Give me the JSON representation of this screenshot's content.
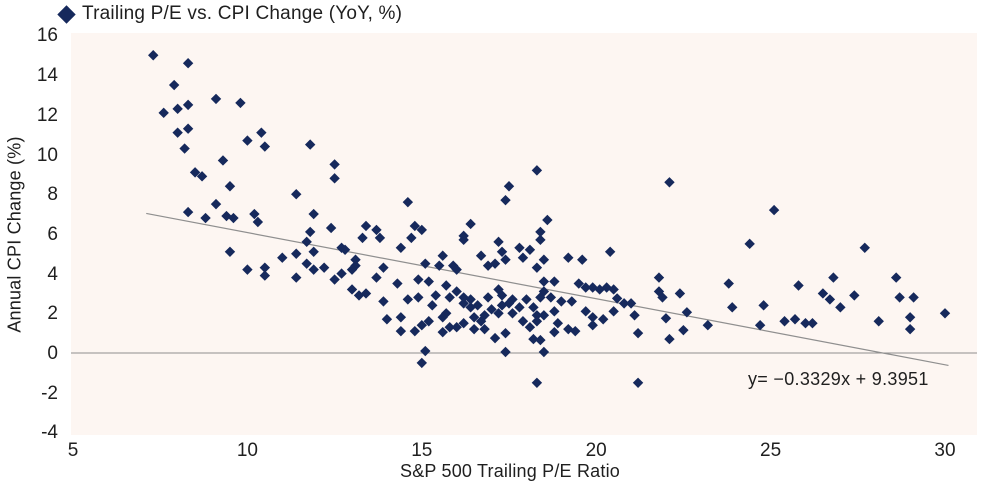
{
  "legend": {
    "label": "Trailing P/E vs. CPI Change (YoY, %)"
  },
  "colors": {
    "marker": "#16295c",
    "plot_bg": "#fdf6f2",
    "line_gray": "#8f8f8f",
    "text": "#1f1f1f"
  },
  "chart_data": {
    "type": "scatter",
    "title": "Trailing P/E vs. CPI Change (YoY, %)",
    "xlabel": "S&P 500 Trailing P/E Ratio",
    "ylabel": "Annual CPI Change (%)",
    "xlim": [
      5,
      30
    ],
    "ylim": [
      -4,
      16
    ],
    "x_ticks": [
      5,
      10,
      15,
      20,
      25,
      30
    ],
    "y_ticks": [
      16,
      14,
      12,
      10,
      8,
      6,
      4,
      2,
      0,
      -2,
      -4
    ],
    "grid": false,
    "legend_position": "top-left",
    "zero_line": true,
    "trendline": {
      "label": "y= −0.3329x + 9.3951",
      "slope": -0.3329,
      "intercept": 9.3951,
      "x_range": [
        7.1,
        30.1
      ]
    },
    "points": [
      [
        7.3,
        15.0
      ],
      [
        8.3,
        14.6
      ],
      [
        7.9,
        13.5
      ],
      [
        9.1,
        12.8
      ],
      [
        9.8,
        12.6
      ],
      [
        8.3,
        12.5
      ],
      [
        8.0,
        12.3
      ],
      [
        7.6,
        12.1
      ],
      [
        8.3,
        11.3
      ],
      [
        8.0,
        11.1
      ],
      [
        10.4,
        11.1
      ],
      [
        11.8,
        10.5
      ],
      [
        10.0,
        10.7
      ],
      [
        10.5,
        10.4
      ],
      [
        8.2,
        10.3
      ],
      [
        9.3,
        9.7
      ],
      [
        12.5,
        9.5
      ],
      [
        18.3,
        9.2
      ],
      [
        8.5,
        9.1
      ],
      [
        8.7,
        8.9
      ],
      [
        12.5,
        8.8
      ],
      [
        22.1,
        8.6
      ],
      [
        9.5,
        8.4
      ],
      [
        17.5,
        8.4
      ],
      [
        11.4,
        8.0
      ],
      [
        17.4,
        7.7
      ],
      [
        14.6,
        7.6
      ],
      [
        9.1,
        7.5
      ],
      [
        25.1,
        7.2
      ],
      [
        8.3,
        7.1
      ],
      [
        10.2,
        7.0
      ],
      [
        11.9,
        7.0
      ],
      [
        9.4,
        6.9
      ],
      [
        8.8,
        6.8
      ],
      [
        9.6,
        6.8
      ],
      [
        18.6,
        6.7
      ],
      [
        10.3,
        6.6
      ],
      [
        16.4,
        6.5
      ],
      [
        13.4,
        6.4
      ],
      [
        14.8,
        6.4
      ],
      [
        12.4,
        6.3
      ],
      [
        13.7,
        6.2
      ],
      [
        15.0,
        6.2
      ],
      [
        11.8,
        6.1
      ],
      [
        18.4,
        6.1
      ],
      [
        16.2,
        5.9
      ],
      [
        13.3,
        5.8
      ],
      [
        13.8,
        5.8
      ],
      [
        14.7,
        5.8
      ],
      [
        16.2,
        5.7
      ],
      [
        18.4,
        5.7
      ],
      [
        11.7,
        5.6
      ],
      [
        17.2,
        5.6
      ],
      [
        24.4,
        5.5
      ],
      [
        12.7,
        5.3
      ],
      [
        14.4,
        5.3
      ],
      [
        17.8,
        5.3
      ],
      [
        27.7,
        5.3
      ],
      [
        12.8,
        5.2
      ],
      [
        18.1,
        5.2
      ],
      [
        17.3,
        5.1
      ],
      [
        20.4,
        5.1
      ],
      [
        9.5,
        5.1
      ],
      [
        11.9,
        5.1
      ],
      [
        11.0,
        4.8
      ],
      [
        11.4,
        5.0
      ],
      [
        15.6,
        4.9
      ],
      [
        16.7,
        4.9
      ],
      [
        17.9,
        4.8
      ],
      [
        19.2,
        4.8
      ],
      [
        13.1,
        4.7
      ],
      [
        17.4,
        4.7
      ],
      [
        18.5,
        4.7
      ],
      [
        19.6,
        4.7
      ],
      [
        11.7,
        4.5
      ],
      [
        15.1,
        4.5
      ],
      [
        17.1,
        4.5
      ],
      [
        13.1,
        4.4
      ],
      [
        15.5,
        4.4
      ],
      [
        16.9,
        4.4
      ],
      [
        15.9,
        4.4
      ],
      [
        10.5,
        4.3
      ],
      [
        12.2,
        4.3
      ],
      [
        13.9,
        4.3
      ],
      [
        18.3,
        4.3
      ],
      [
        10.0,
        4.2
      ],
      [
        11.9,
        4.2
      ],
      [
        13.0,
        4.2
      ],
      [
        16.0,
        4.2
      ],
      [
        12.7,
        4.0
      ],
      [
        10.5,
        3.9
      ],
      [
        11.4,
        3.8
      ],
      [
        13.7,
        3.8
      ],
      [
        21.8,
        3.8
      ],
      [
        26.8,
        3.8
      ],
      [
        28.6,
        3.8
      ],
      [
        12.5,
        3.7
      ],
      [
        14.9,
        3.7
      ],
      [
        15.2,
        3.6
      ],
      [
        18.5,
        3.6
      ],
      [
        18.8,
        3.6
      ],
      [
        14.3,
        3.5
      ],
      [
        19.5,
        3.5
      ],
      [
        23.8,
        3.5
      ],
      [
        15.7,
        3.4
      ],
      [
        25.8,
        3.4
      ],
      [
        19.7,
        3.3
      ],
      [
        19.9,
        3.3
      ],
      [
        20.3,
        3.3
      ],
      [
        13.0,
        3.2
      ],
      [
        17.2,
        3.2
      ],
      [
        20.1,
        3.2
      ],
      [
        20.5,
        3.2
      ],
      [
        16.0,
        3.1
      ],
      [
        18.5,
        3.1
      ],
      [
        21.8,
        3.1
      ],
      [
        13.4,
        3.0
      ],
      [
        22.4,
        3.0
      ],
      [
        26.5,
        3.0
      ],
      [
        13.2,
        2.9
      ],
      [
        15.4,
        2.9
      ],
      [
        17.3,
        2.9
      ],
      [
        27.4,
        2.9
      ],
      [
        14.9,
        2.8
      ],
      [
        15.8,
        2.8
      ],
      [
        16.9,
        2.8
      ],
      [
        16.2,
        2.8
      ],
      [
        28.7,
        2.8
      ],
      [
        29.1,
        2.8
      ],
      [
        18.4,
        2.8
      ],
      [
        18.7,
        2.8
      ],
      [
        20.6,
        2.75
      ],
      [
        21.9,
        2.8
      ],
      [
        18.0,
        2.7
      ],
      [
        16.4,
        2.7
      ],
      [
        17.6,
        2.7
      ],
      [
        26.7,
        2.7
      ],
      [
        14.6,
        2.7
      ],
      [
        13.9,
        2.6
      ],
      [
        19.0,
        2.6
      ],
      [
        19.3,
        2.6
      ],
      [
        16.2,
        2.5
      ],
      [
        17.5,
        2.5
      ],
      [
        20.8,
        2.5
      ],
      [
        21.0,
        2.5
      ],
      [
        16.6,
        2.4
      ],
      [
        17.3,
        2.4
      ],
      [
        24.8,
        2.4
      ],
      [
        15.3,
        2.4
      ],
      [
        23.9,
        2.3
      ],
      [
        16.4,
        2.3
      ],
      [
        17.8,
        2.3
      ],
      [
        18.2,
        2.3
      ],
      [
        27.0,
        2.3
      ],
      [
        17.0,
        2.2
      ],
      [
        19.7,
        2.1
      ],
      [
        20.5,
        2.1
      ],
      [
        18.8,
        2.1
      ],
      [
        22.6,
        2.05
      ],
      [
        30.0,
        2.0
      ],
      [
        15.7,
        2.0
      ],
      [
        17.2,
        2.0
      ],
      [
        17.6,
        2.0
      ],
      [
        21.1,
        1.9
      ],
      [
        18.5,
        1.9
      ],
      [
        16.8,
        1.9
      ],
      [
        18.3,
        1.9
      ],
      [
        14.4,
        1.8
      ],
      [
        15.6,
        1.8
      ],
      [
        16.5,
        1.8
      ],
      [
        19.9,
        1.8
      ],
      [
        29.0,
        1.8
      ],
      [
        14.0,
        1.7
      ],
      [
        20.2,
        1.7
      ],
      [
        22.0,
        1.75
      ],
      [
        25.7,
        1.7
      ],
      [
        15.2,
        1.6
      ],
      [
        16.7,
        1.6
      ],
      [
        17.9,
        1.6
      ],
      [
        18.3,
        1.6
      ],
      [
        25.4,
        1.6
      ],
      [
        28.1,
        1.6
      ],
      [
        16.2,
        1.5
      ],
      [
        18.9,
        1.5
      ],
      [
        26.0,
        1.5
      ],
      [
        26.2,
        1.5
      ],
      [
        15.0,
        1.4
      ],
      [
        19.9,
        1.4
      ],
      [
        23.2,
        1.4
      ],
      [
        24.7,
        1.4
      ],
      [
        15.8,
        1.3
      ],
      [
        16.0,
        1.3
      ],
      [
        18.1,
        1.3
      ],
      [
        19.2,
        1.2
      ],
      [
        19.4,
        1.1
      ],
      [
        16.8,
        1.2
      ],
      [
        16.5,
        1.2
      ],
      [
        22.5,
        1.15
      ],
      [
        29.0,
        1.2
      ],
      [
        14.4,
        1.1
      ],
      [
        14.8,
        1.1
      ],
      [
        15.6,
        1.05
      ],
      [
        17.4,
        1.0
      ],
      [
        18.8,
        1.05
      ],
      [
        21.2,
        1.0
      ],
      [
        17.1,
        0.75
      ],
      [
        18.2,
        0.7
      ],
      [
        22.1,
        0.7
      ],
      [
        18.4,
        0.65
      ],
      [
        15.1,
        0.1
      ],
      [
        17.4,
        0.05
      ],
      [
        18.5,
        0.05
      ],
      [
        15.0,
        -0.5
      ],
      [
        18.3,
        -1.5
      ],
      [
        21.2,
        -1.5
      ]
    ]
  }
}
